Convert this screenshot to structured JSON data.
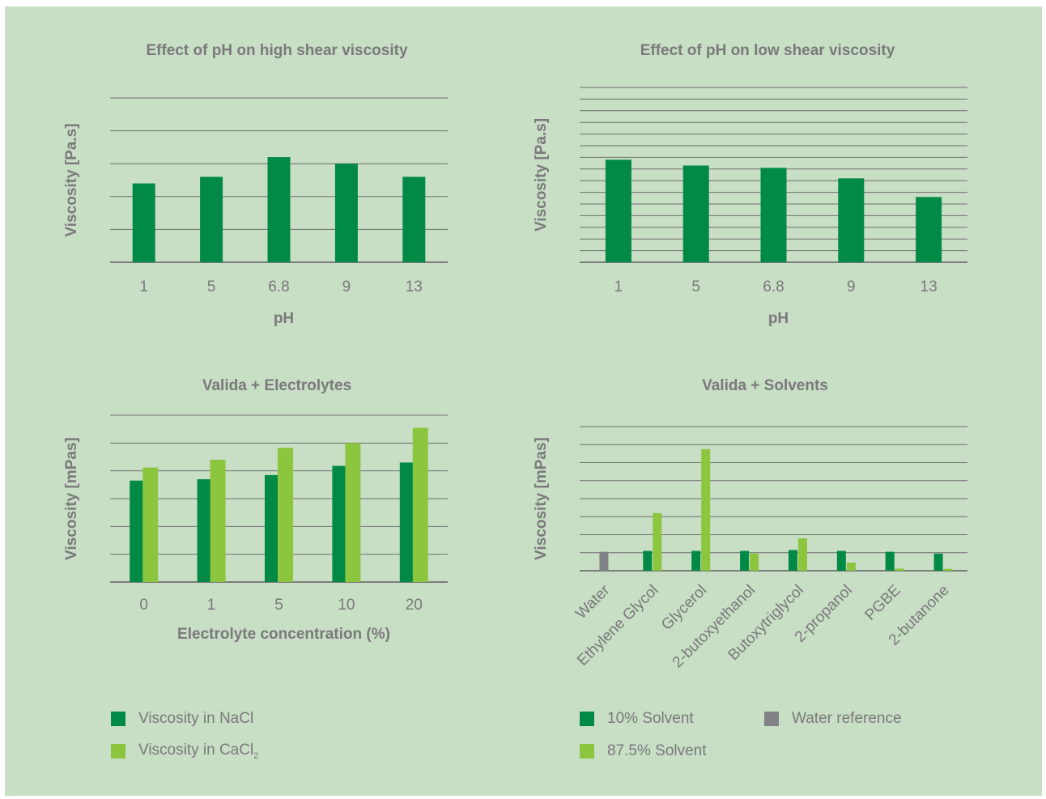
{
  "colors": {
    "background": "#c8dec5",
    "dark_green": "#008a45",
    "light_green": "#8cc63f",
    "grey": "#808285",
    "gridline": "#6f6f6f",
    "text": "#7a7a7a"
  },
  "chart_data": [
    {
      "type": "bar",
      "title": "Effect of pH on high shear viscosity",
      "xlabel": "pH",
      "ylabel": "Viscosity [Pa.s]",
      "categories": [
        "1",
        "5",
        "6.8",
        "9",
        "13"
      ],
      "series": [
        {
          "color": "#008a45",
          "values": [
            2.4,
            2.6,
            3.2,
            3.0,
            2.6
          ]
        }
      ],
      "ylim": [
        0,
        5
      ],
      "ygrid_step": 1,
      "grid": true,
      "y_tick_labels_shown": false
    },
    {
      "type": "bar",
      "title": "Effect of pH on low shear viscosity",
      "xlabel": "pH",
      "ylabel": "Viscosity [Pa.s]",
      "categories": [
        "1",
        "5",
        "6.8",
        "9",
        "13"
      ],
      "series": [
        {
          "color": "#008a45",
          "values": [
            8.8,
            8.3,
            8.1,
            7.2,
            5.6
          ]
        }
      ],
      "ylim": [
        0,
        15
      ],
      "ygrid_step": 1,
      "grid": true,
      "y_tick_labels_shown": false
    },
    {
      "type": "bar",
      "title": "Valida + Electrolytes",
      "xlabel": "Electrolyte concentration (%)",
      "ylabel": "Viscosity [mPas]",
      "categories": [
        "0",
        "1",
        "5",
        "10",
        "20"
      ],
      "series": [
        {
          "name": "Viscosity in NaCl",
          "color": "#008a45",
          "values": [
            3.65,
            3.7,
            3.85,
            4.18,
            4.3
          ]
        },
        {
          "name": "Viscosity in CaCl₂",
          "color": "#8cc63f",
          "values": [
            4.12,
            4.4,
            4.83,
            5.0,
            5.55
          ]
        }
      ],
      "ylim": [
        0,
        6
      ],
      "ygrid_step": 1,
      "grid": true,
      "legend_position": "bottom",
      "y_tick_labels_shown": false
    },
    {
      "type": "bar",
      "title": "Valida + Solvents",
      "xlabel": "",
      "ylabel": "Viscosity [mPas]",
      "categories": [
        "Water",
        "Ethylene Glycol",
        "Glycerol",
        "2-butoxyethanol",
        "Butoxytriglycol",
        "2-propanol",
        "PGBE",
        "2-butanone"
      ],
      "series": [
        {
          "name": "10% Solvent",
          "color": "#008a45",
          "values": [
            null,
            1.1,
            1.1,
            1.1,
            1.15,
            1.1,
            1.05,
            0.95
          ]
        },
        {
          "name": "87.5% Solvent",
          "color": "#8cc63f",
          "values": [
            null,
            3.2,
            6.75,
            0.95,
            1.8,
            0.45,
            0.12,
            0.1
          ]
        },
        {
          "name": "Water reference",
          "color": "#808285",
          "values": [
            1.05,
            null,
            null,
            null,
            null,
            null,
            null,
            null
          ]
        }
      ],
      "ylim": [
        0,
        8
      ],
      "ygrid_step": 1,
      "grid": true,
      "legend_position": "bottom",
      "y_tick_labels_shown": false
    }
  ],
  "legends": {
    "electrolytes": [
      {
        "label": "Viscosity in NaCl",
        "color": "#008a45"
      },
      {
        "label_main": "Viscosity in CaCl",
        "label_sub": "2",
        "color": "#8cc63f"
      }
    ],
    "solvents": [
      {
        "label": "10% Solvent",
        "color": "#008a45"
      },
      {
        "label": "Water reference",
        "color": "#808285"
      },
      {
        "label": "87.5% Solvent",
        "color": "#8cc63f"
      }
    ]
  }
}
